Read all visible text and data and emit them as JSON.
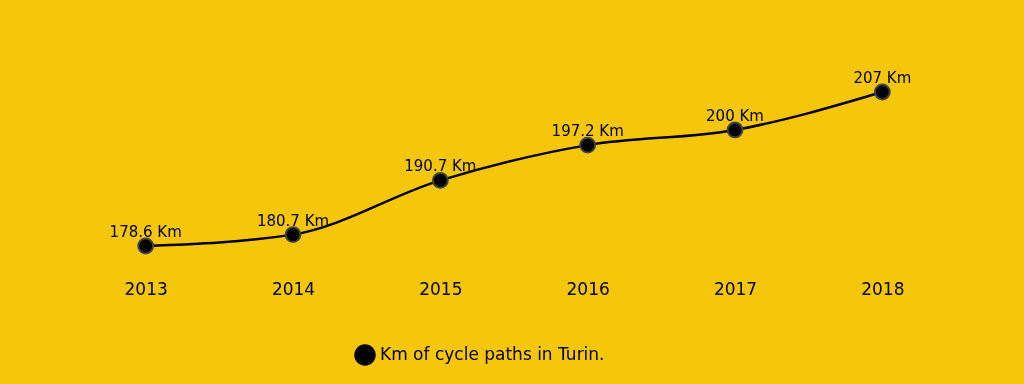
{
  "chart_data": {
    "type": "line",
    "categories": [
      "2013",
      "2014",
      "2015",
      "2016",
      "2017",
      "2018"
    ],
    "series": [
      {
        "name": "Km of cycle paths in Turin.",
        "color": "#000000",
        "values": [
          178.6,
          180.7,
          190.7,
          197.2,
          200,
          207
        ],
        "value_labels": [
          "178.6 Km",
          "180.7 Km",
          "190.7 Km",
          "197.2 Km",
          "200 Km",
          "207 Km"
        ]
      }
    ],
    "tick_labels": "x",
    "marker": "circle",
    "line_style": "solid",
    "grid": false,
    "legend": "bottom"
  }
}
